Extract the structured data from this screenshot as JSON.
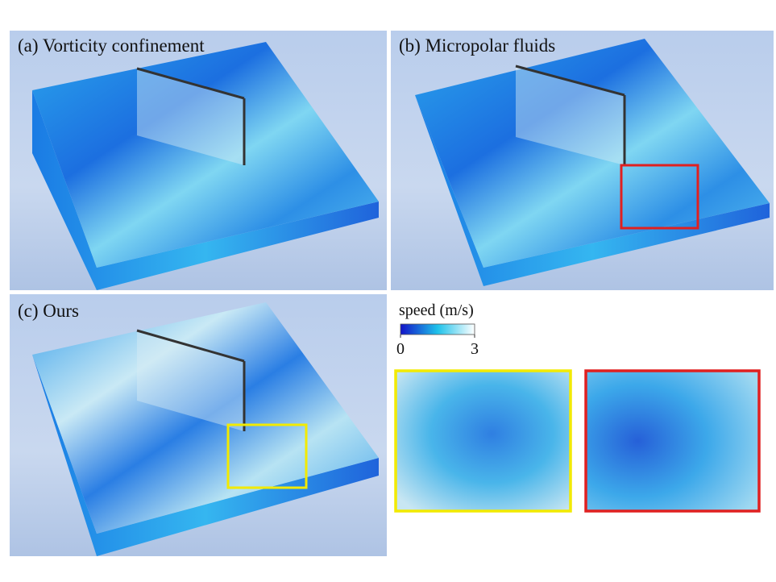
{
  "panels": [
    {
      "label": "(a) Vorticity confinement"
    },
    {
      "label": "(b) Micropolar fluids"
    },
    {
      "label": "(c) Ours"
    }
  ],
  "colorbar": {
    "title": "speed (m/s)",
    "ticks": [
      0,
      3
    ]
  }
}
